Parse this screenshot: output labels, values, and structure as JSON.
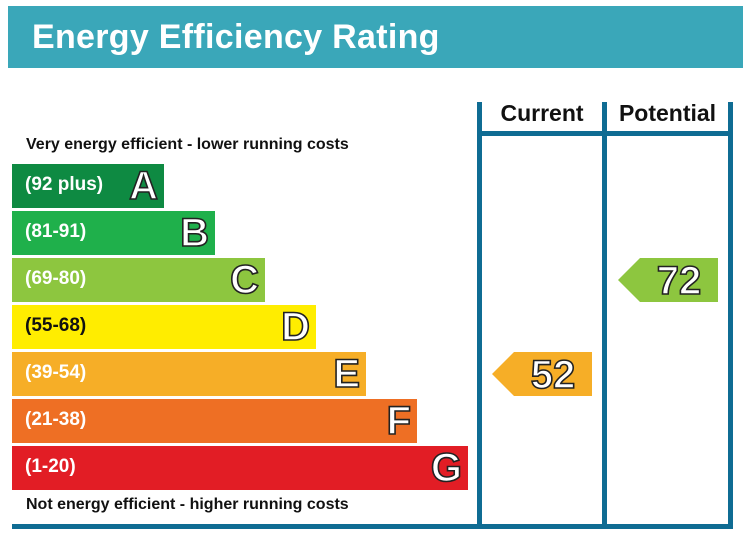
{
  "header": {
    "title": "Energy Efficiency Rating"
  },
  "notes": {
    "top": "Very energy efficient - lower running costs",
    "bottom": "Not energy efficient - higher running costs"
  },
  "columns": {
    "current": "Current",
    "potential": "Potential"
  },
  "chart_data": {
    "type": "bar",
    "title": "Energy Efficiency Rating",
    "bands": [
      {
        "letter": "A",
        "range": "(92 plus)",
        "min": 92,
        "max": 100,
        "color": "#0e8a42"
      },
      {
        "letter": "B",
        "range": "(81-91)",
        "min": 81,
        "max": 91,
        "color": "#1fb04b"
      },
      {
        "letter": "C",
        "range": "(69-80)",
        "min": 69,
        "max": 80,
        "color": "#8dc63f"
      },
      {
        "letter": "D",
        "range": "(55-68)",
        "min": 55,
        "max": 68,
        "color": "#ffed00"
      },
      {
        "letter": "E",
        "range": "(39-54)",
        "min": 39,
        "max": 54,
        "color": "#f6ae27"
      },
      {
        "letter": "F",
        "range": "(21-38)",
        "min": 21,
        "max": 38,
        "color": "#ee6f24"
      },
      {
        "letter": "G",
        "range": "(1-20)",
        "min": 1,
        "max": 20,
        "color": "#e21d25"
      }
    ],
    "current": {
      "value": 52,
      "band": "E",
      "color": "#f6ae27"
    },
    "potential": {
      "value": 72,
      "band": "C",
      "color": "#8dc63f"
    }
  }
}
